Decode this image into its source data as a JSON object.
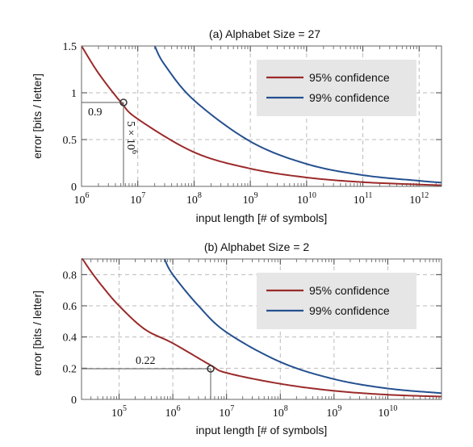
{
  "chart_data": [
    {
      "type": "line",
      "title": "(a) Alphabet Size = 27",
      "xlabel": "input length [# of symbols]",
      "ylabel": "error [bits / letter]",
      "xscale": "log",
      "xlim": [
        1000000,
        2500000000000
      ],
      "ylim": [
        0,
        1.5
      ],
      "x_ticks": [
        {
          "value": 1000000,
          "base": "10",
          "exp": "6"
        },
        {
          "value": 10000000,
          "base": "10",
          "exp": "7"
        },
        {
          "value": 100000000,
          "base": "10",
          "exp": "8"
        },
        {
          "value": 1000000000,
          "base": "10",
          "exp": "9"
        },
        {
          "value": 10000000000,
          "base": "10",
          "exp": "10"
        },
        {
          "value": 100000000000,
          "base": "10",
          "exp": "11"
        },
        {
          "value": 1000000000000,
          "base": "10",
          "exp": "12"
        }
      ],
      "y_ticks": [
        {
          "value": 0,
          "label": "0"
        },
        {
          "value": 0.5,
          "label": "0.5"
        },
        {
          "value": 1,
          "label": "1"
        },
        {
          "value": 1.5,
          "label": "1.5"
        }
      ],
      "grid": true,
      "legend_position": "top-right",
      "series": [
        {
          "name": "95% confidence",
          "color": "#9b2a2a",
          "x": [
            1000000,
            2000000,
            5000000,
            10000000,
            100000000,
            1000000000,
            10000000000,
            100000000000,
            1000000000000,
            2500000000000
          ],
          "y": [
            1.5,
            1.21,
            0.9,
            0.72,
            0.365,
            0.19,
            0.095,
            0.045,
            0.02,
            0.012
          ]
        },
        {
          "name": "99% confidence",
          "color": "#24508f",
          "x": [
            20000000,
            30000000,
            100000000,
            1000000000,
            10000000000,
            100000000000,
            1000000000000,
            2500000000000
          ],
          "y": [
            1.5,
            1.3,
            0.92,
            0.48,
            0.24,
            0.12,
            0.06,
            0.04
          ]
        }
      ],
      "annotations": {
        "point": {
          "x": 5000000,
          "y": 0.9
        },
        "y_value_label": "0.9",
        "x_value_label": {
          "base": "5 × 10",
          "exp": "6"
        }
      }
    },
    {
      "type": "line",
      "title": "(b) Alphabet Size = 2",
      "xlabel": "input length [# of symbols]",
      "ylabel": "error [bits / letter]",
      "xscale": "log",
      "xlim": [
        20000,
        100000000000
      ],
      "ylim": [
        0,
        0.9
      ],
      "x_ticks": [
        {
          "value": 100000,
          "base": "10",
          "exp": "5"
        },
        {
          "value": 1000000,
          "base": "10",
          "exp": "6"
        },
        {
          "value": 10000000,
          "base": "10",
          "exp": "7"
        },
        {
          "value": 100000000,
          "base": "10",
          "exp": "8"
        },
        {
          "value": 1000000000,
          "base": "10",
          "exp": "9"
        },
        {
          "value": 10000000000,
          "base": "10",
          "exp": "10"
        }
      ],
      "y_ticks": [
        {
          "value": 0,
          "label": "0"
        },
        {
          "value": 0.2,
          "label": "0.2"
        },
        {
          "value": 0.4,
          "label": "0.4"
        },
        {
          "value": 0.6,
          "label": "0.6"
        },
        {
          "value": 0.8,
          "label": "0.8"
        }
      ],
      "grid": true,
      "legend_position": "top-right",
      "series": [
        {
          "name": "95% confidence",
          "color": "#9b2a2a",
          "x": [
            20000,
            30000,
            50000,
            100000,
            300000,
            1000000,
            5000000,
            10000000,
            100000000,
            1000000000,
            10000000000,
            100000000000
          ],
          "y": [
            0.91,
            0.82,
            0.72,
            0.6,
            0.45,
            0.36,
            0.22,
            0.17,
            0.1,
            0.055,
            0.03,
            0.018
          ]
        },
        {
          "name": "99% confidence",
          "color": "#24508f",
          "x": [
            700000,
            1000000,
            3000000,
            10000000,
            100000000,
            1000000000,
            10000000000,
            100000000000
          ],
          "y": [
            0.9,
            0.8,
            0.6,
            0.43,
            0.24,
            0.13,
            0.07,
            0.04
          ]
        }
      ],
      "annotations": {
        "point": {
          "x": 5000000,
          "y": 0.22
        },
        "y_value_label": "0.22"
      }
    }
  ]
}
